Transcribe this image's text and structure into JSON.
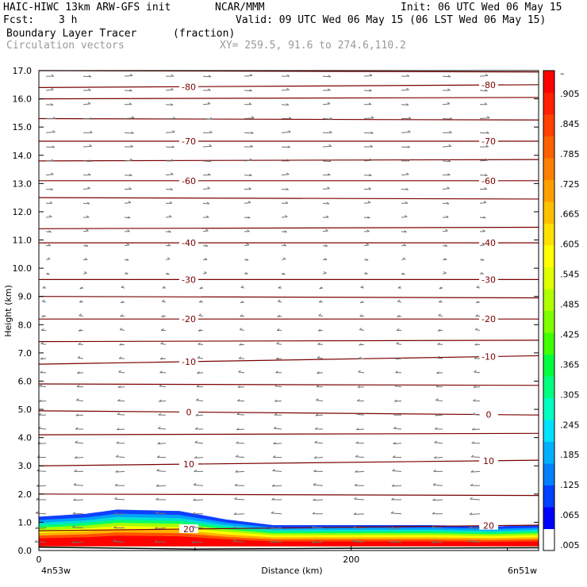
{
  "header": {
    "model": "HAIC-HIWC 13km ARW-GFS init",
    "org": "NCAR/MMM",
    "init": "Init: 06 UTC Wed 06 May 15",
    "fcst_label": "Fcst:",
    "fcst_value": "3 h",
    "valid": "Valid: 09 UTC Wed 06 May 15 (06 LST Wed 06 May 15)",
    "field_name": "Boundary Layer Tracer",
    "field_units": "(fraction)",
    "vector_label": "Circulation vectors",
    "xy_label": "XY= 259.5, 91.6 to 274.6,110.2"
  },
  "chart_data": {
    "type": "heatmap",
    "title": "Boundary Layer Tracer",
    "xlabel": "Distance (km)",
    "ylabel": "Height (km)",
    "x_tick_labels": [
      "0",
      "200"
    ],
    "x_end_labels": [
      "4n53w",
      "6n51w"
    ],
    "xlim": [
      0,
      320
    ],
    "ylim": [
      0,
      17
    ],
    "y_ticks": [
      "0.0",
      "1.0",
      "2.0",
      "3.0",
      "4.0",
      "5.0",
      "6.0",
      "7.0",
      "8.0",
      "9.0",
      "10.0",
      "11.0",
      "12.0",
      "13.0",
      "14.0",
      "15.0",
      "16.0",
      "17.0"
    ],
    "colorbar": {
      "labels": [
        ".005",
        ".065",
        ".125",
        ".185",
        ".245",
        ".305",
        ".365",
        ".425",
        ".485",
        ".545",
        ".605",
        ".665",
        ".725",
        ".785",
        ".845",
        ".905",
        "–"
      ],
      "colors": [
        "#ffffff",
        "#0000ff",
        "#0040ff",
        "#0080ff",
        "#00b0ff",
        "#00e0ff",
        "#00ffc0",
        "#00ff80",
        "#00ff40",
        "#40ff00",
        "#80ff00",
        "#b0ff00",
        "#e0ff00",
        "#ffff00",
        "#ffe000",
        "#ffc000",
        "#ffa000",
        "#ff8000",
        "#ff6000",
        "#ff4000",
        "#ff2000",
        "#ff0000"
      ]
    },
    "temperature_contours": [
      {
        "label": "-80",
        "z_left": 16.4,
        "z_right": 16.5
      },
      {
        "label": "-70",
        "z_left": 14.5,
        "z_right": 14.5
      },
      {
        "label": "-60",
        "z_left": 13.1,
        "z_right": 13.1
      },
      {
        "label": "-40",
        "z_left": 10.9,
        "z_right": 10.9
      },
      {
        "label": "-30",
        "z_left": 9.6,
        "z_right": 9.6
      },
      {
        "label": "-20",
        "z_left": 8.2,
        "z_right": 8.2
      },
      {
        "label": "-10",
        "z_left": 6.6,
        "z_right": 6.9
      },
      {
        "label": "0",
        "z_left": 4.95,
        "z_right": 4.8
      },
      {
        "label": "10",
        "z_left": 3.0,
        "z_right": 3.2
      },
      {
        "label": "20",
        "z_left": 0.7,
        "z_right": 0.9
      }
    ],
    "unlabeled_contours": [
      17.0,
      16.0,
      15.3,
      13.8,
      12.5,
      11.4,
      9.0,
      7.4,
      5.9,
      4.1,
      2.0
    ],
    "boundary_layer_top_km": [
      {
        "x": 0,
        "z": 1.2
      },
      {
        "x": 30,
        "z": 1.3
      },
      {
        "x": 50,
        "z": 1.45
      },
      {
        "x": 90,
        "z": 1.4
      },
      {
        "x": 120,
        "z": 1.1
      },
      {
        "x": 150,
        "z": 0.9
      },
      {
        "x": 250,
        "z": 0.9
      },
      {
        "x": 290,
        "z": 0.85
      },
      {
        "x": 320,
        "z": 0.9
      }
    ],
    "wind_vectors": {
      "upper_direction": "eastward",
      "lower_direction": "westward",
      "reversal_height_km": 9.5
    }
  }
}
